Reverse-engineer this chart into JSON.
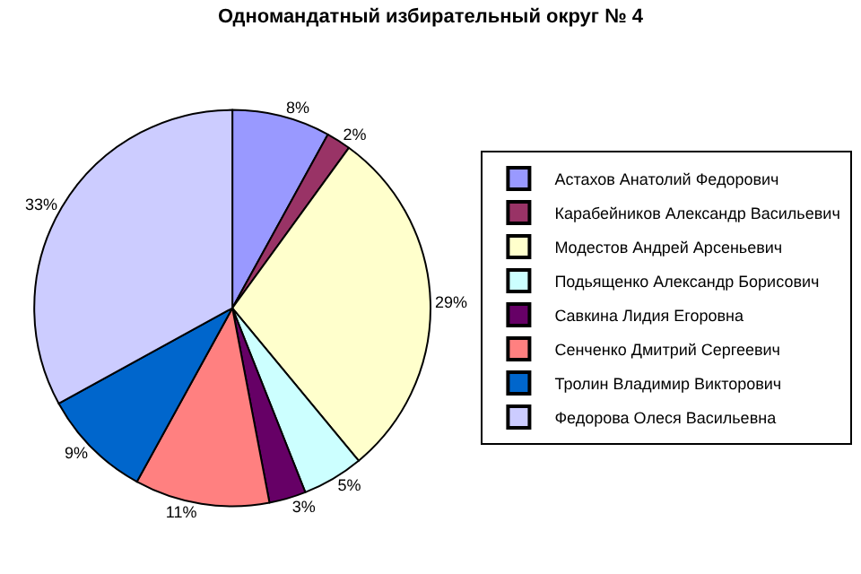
{
  "chart_data": {
    "type": "pie",
    "title": "Одномандатный избирательный округ № 4",
    "categories": [
      "Астахов Анатолий Федорович",
      "Карабейников Александр Васильевич",
      "Модестов Андрей Арсеньевич",
      "Подьященко Александр Борисович",
      "Савкина Лидия Егоровна",
      "Сенченко Дмитрий Сергеевич",
      "Тролин Владимир Викторович",
      "Федорова Олеся Васильевна"
    ],
    "values": [
      8,
      2,
      29,
      5,
      3,
      11,
      9,
      33
    ],
    "value_labels": [
      "8%",
      "2%",
      "29%",
      "5%",
      "3%",
      "11%",
      "9%",
      "33%"
    ],
    "colors": [
      "#9999ff",
      "#993366",
      "#ffffcc",
      "#ccffff",
      "#660066",
      "#ff8080",
      "#0066cc",
      "#ccccff"
    ],
    "legend": "right"
  }
}
